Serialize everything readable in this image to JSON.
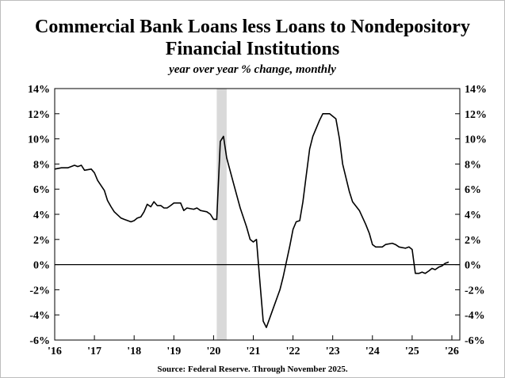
{
  "chart_data": {
    "type": "line",
    "title_line1": "Commercial Bank Loans less Loans to Nondepository",
    "title_line2": "Financial Institutions",
    "subtitle": "year over year % change, monthly",
    "source": "Source: Federal Reserve. Through November 2025.",
    "xlabel": "",
    "ylabel": "",
    "x_ticks": [
      "'16",
      "'17",
      "'18",
      "'19",
      "'20",
      "'21",
      "'22",
      "'23",
      "'24",
      "'25",
      "'26"
    ],
    "y_ticks_left": [
      "14%",
      "12%",
      "10%",
      "8%",
      "6%",
      "4%",
      "2%",
      "0%",
      "-2%",
      "-4%",
      "-6%"
    ],
    "y_ticks_right": [
      "14%",
      "12%",
      "10%",
      "8%",
      "6%",
      "4%",
      "2%",
      "0%",
      "-2%",
      "-4%",
      "-6%"
    ],
    "xlim": [
      2016,
      2026.2
    ],
    "ylim": [
      -6,
      14
    ],
    "y_tick_values": [
      14,
      12,
      10,
      8,
      6,
      4,
      2,
      0,
      -2,
      -4,
      -6
    ],
    "x_tick_values": [
      2016,
      2017,
      2018,
      2019,
      2020,
      2021,
      2022,
      2023,
      2024,
      2025,
      2026
    ],
    "grid": false,
    "zero_line": true,
    "recession_shade": [
      2020.08,
      2020.33
    ],
    "colors": {
      "line": "#000000",
      "shade": "#d9d9d9"
    },
    "series": [
      {
        "values": [
          [
            2016.0,
            7.6
          ],
          [
            2016.17,
            7.7
          ],
          [
            2016.33,
            7.7
          ],
          [
            2016.5,
            7.9
          ],
          [
            2016.58,
            7.8
          ],
          [
            2016.67,
            7.9
          ],
          [
            2016.75,
            7.5
          ],
          [
            2016.92,
            7.6
          ],
          [
            2017.0,
            7.3
          ],
          [
            2017.08,
            6.7
          ],
          [
            2017.25,
            5.9
          ],
          [
            2017.33,
            5.1
          ],
          [
            2017.42,
            4.6
          ],
          [
            2017.5,
            4.2
          ],
          [
            2017.67,
            3.7
          ],
          [
            2017.75,
            3.6
          ],
          [
            2017.92,
            3.4
          ],
          [
            2018.0,
            3.5
          ],
          [
            2018.08,
            3.7
          ],
          [
            2018.17,
            3.8
          ],
          [
            2018.25,
            4.2
          ],
          [
            2018.33,
            4.8
          ],
          [
            2018.42,
            4.6
          ],
          [
            2018.5,
            5.0
          ],
          [
            2018.58,
            4.7
          ],
          [
            2018.67,
            4.7
          ],
          [
            2018.75,
            4.5
          ],
          [
            2018.83,
            4.5
          ],
          [
            2018.92,
            4.7
          ],
          [
            2019.0,
            4.9
          ],
          [
            2019.17,
            4.9
          ],
          [
            2019.25,
            4.3
          ],
          [
            2019.33,
            4.5
          ],
          [
            2019.5,
            4.4
          ],
          [
            2019.58,
            4.5
          ],
          [
            2019.67,
            4.3
          ],
          [
            2019.83,
            4.2
          ],
          [
            2019.92,
            4.0
          ],
          [
            2020.0,
            3.6
          ],
          [
            2020.08,
            3.6
          ],
          [
            2020.17,
            9.8
          ],
          [
            2020.25,
            10.2
          ],
          [
            2020.33,
            8.5
          ],
          [
            2020.5,
            6.5
          ],
          [
            2020.67,
            4.5
          ],
          [
            2020.83,
            3.0
          ],
          [
            2020.92,
            2.0
          ],
          [
            2021.0,
            1.8
          ],
          [
            2021.08,
            2.0
          ],
          [
            2021.17,
            -1.5
          ],
          [
            2021.25,
            -4.5
          ],
          [
            2021.33,
            -5.0
          ],
          [
            2021.5,
            -3.5
          ],
          [
            2021.67,
            -2.0
          ],
          [
            2021.75,
            -1.0
          ],
          [
            2021.92,
            1.5
          ],
          [
            2022.0,
            2.8
          ],
          [
            2022.08,
            3.4
          ],
          [
            2022.17,
            3.5
          ],
          [
            2022.25,
            5.0
          ],
          [
            2022.33,
            7.0
          ],
          [
            2022.42,
            9.2
          ],
          [
            2022.5,
            10.2
          ],
          [
            2022.67,
            11.5
          ],
          [
            2022.75,
            12.0
          ],
          [
            2022.92,
            12.0
          ],
          [
            2023.0,
            11.8
          ],
          [
            2023.08,
            11.6
          ],
          [
            2023.17,
            10.0
          ],
          [
            2023.25,
            8.0
          ],
          [
            2023.42,
            5.8
          ],
          [
            2023.5,
            5.0
          ],
          [
            2023.67,
            4.3
          ],
          [
            2023.83,
            3.2
          ],
          [
            2023.92,
            2.5
          ],
          [
            2024.0,
            1.6
          ],
          [
            2024.08,
            1.4
          ],
          [
            2024.25,
            1.4
          ],
          [
            2024.33,
            1.6
          ],
          [
            2024.5,
            1.7
          ],
          [
            2024.58,
            1.6
          ],
          [
            2024.67,
            1.4
          ],
          [
            2024.83,
            1.3
          ],
          [
            2024.92,
            1.4
          ],
          [
            2025.0,
            1.2
          ],
          [
            2025.08,
            -0.7
          ],
          [
            2025.17,
            -0.7
          ],
          [
            2025.25,
            -0.6
          ],
          [
            2025.33,
            -0.7
          ],
          [
            2025.42,
            -0.5
          ],
          [
            2025.5,
            -0.3
          ],
          [
            2025.58,
            -0.4
          ],
          [
            2025.67,
            -0.2
          ],
          [
            2025.75,
            -0.1
          ],
          [
            2025.83,
            0.1
          ],
          [
            2025.92,
            0.2
          ]
        ]
      }
    ]
  }
}
